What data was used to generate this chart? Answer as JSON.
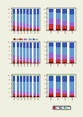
{
  "bg_color": "#f0f0e0",
  "panel_bg": "#f0f0e0",
  "sections": [
    {
      "left": {
        "categories": [
          "가",
          "나",
          "다",
          "라",
          "마",
          "바",
          "사",
          "아"
        ],
        "series": [
          {
            "color": "#800000",
            "values": [
              5,
              4,
              3,
              3,
              2,
              2,
              1,
              1
            ]
          },
          {
            "color": "#CC3333",
            "values": [
              15,
              13,
              12,
              11,
              10,
              9,
              8,
              7
            ]
          },
          {
            "color": "#9966CC",
            "values": [
              20,
              20,
              20,
              18,
              16,
              15,
              14,
              12
            ]
          },
          {
            "color": "#6699CC",
            "values": [
              40,
              42,
              44,
              46,
              48,
              50,
              52,
              54
            ]
          },
          {
            "color": "#3355AA",
            "values": [
              20,
              21,
              21,
              22,
              24,
              24,
              25,
              26
            ]
          }
        ]
      },
      "right": {
        "categories": [
          "가",
          "나",
          "다",
          "라"
        ],
        "series": [
          {
            "color": "#800000",
            "values": [
              8,
              6,
              5,
              4
            ]
          },
          {
            "color": "#CC3333",
            "values": [
              22,
              20,
              16,
              12
            ]
          },
          {
            "color": "#9966CC",
            "values": [
              25,
              26,
              24,
              22
            ]
          },
          {
            "color": "#6699CC",
            "values": [
              30,
              32,
              35,
              38
            ]
          },
          {
            "color": "#3355AA",
            "values": [
              15,
              16,
              20,
              24
            ]
          }
        ]
      }
    },
    {
      "left": {
        "categories": [
          "가",
          "나",
          "다",
          "라",
          "마",
          "바",
          "사",
          "아"
        ],
        "series": [
          {
            "color": "#800000",
            "values": [
              4,
              3,
              3,
              2,
              2,
              1,
              1,
              1
            ]
          },
          {
            "color": "#CC3333",
            "values": [
              12,
              11,
              10,
              9,
              8,
              7,
              6,
              5
            ]
          },
          {
            "color": "#9966CC",
            "values": [
              22,
              20,
              18,
              17,
              16,
              14,
              13,
              12
            ]
          },
          {
            "color": "#6699CC",
            "values": [
              40,
              42,
              44,
              46,
              48,
              50,
              52,
              54
            ]
          },
          {
            "color": "#3355AA",
            "values": [
              22,
              24,
              25,
              26,
              26,
              28,
              28,
              28
            ]
          }
        ]
      },
      "right": {
        "categories": [
          "가",
          "나",
          "다",
          "라"
        ],
        "series": [
          {
            "color": "#800000",
            "values": [
              7,
              5,
              4,
              3
            ]
          },
          {
            "color": "#CC3333",
            "values": [
              18,
              16,
              14,
              11
            ]
          },
          {
            "color": "#9966CC",
            "values": [
              24,
              22,
              20,
              18
            ]
          },
          {
            "color": "#6699CC",
            "values": [
              33,
              34,
              37,
              40
            ]
          },
          {
            "color": "#3355AA",
            "values": [
              18,
              23,
              25,
              28
            ]
          }
        ]
      }
    },
    {
      "left": {
        "categories": [
          "가",
          "나",
          "다",
          "라",
          "마",
          "바",
          "사",
          "아"
        ],
        "series": [
          {
            "color": "#800000",
            "values": [
              3,
              3,
              2,
              2,
              2,
              1,
              1,
              1
            ]
          },
          {
            "color": "#CC3333",
            "values": [
              10,
              9,
              8,
              7,
              6,
              5,
              4,
              4
            ]
          },
          {
            "color": "#9966CC",
            "values": [
              18,
              16,
              15,
              14,
              13,
              12,
              11,
              10
            ]
          },
          {
            "color": "#6699CC",
            "values": [
              42,
              44,
              46,
              48,
              50,
              52,
              54,
              56
            ]
          },
          {
            "color": "#3355AA",
            "values": [
              24,
              25,
              26,
              27,
              27,
              28,
              28,
              27
            ]
          },
          {
            "color": "#66CC66",
            "values": [
              3,
              3,
              3,
              2,
              2,
              2,
              2,
              2
            ]
          }
        ]
      },
      "right": {
        "categories": [
          "가",
          "나",
          "다",
          "라"
        ],
        "series": [
          {
            "color": "#800000",
            "values": [
              5,
              4,
              3,
              2
            ]
          },
          {
            "color": "#CC3333",
            "values": [
              14,
              12,
              10,
              8
            ]
          },
          {
            "color": "#9966CC",
            "values": [
              22,
              20,
              18,
              16
            ]
          },
          {
            "color": "#6699CC",
            "values": [
              34,
              36,
              39,
              43
            ]
          },
          {
            "color": "#3355AA",
            "values": [
              22,
              25,
              27,
              29
            ]
          },
          {
            "color": "#66CC66",
            "values": [
              3,
              3,
              3,
              2
            ]
          }
        ]
      }
    }
  ],
  "legend_section0": [
    {
      "color": "#800000",
      "label": "매우 그렇다"
    },
    {
      "color": "#CC3333",
      "label": "그렇다"
    },
    {
      "color": "#9966CC",
      "label": "보통이다"
    },
    {
      "color": "#6699CC",
      "label": "아니다"
    },
    {
      "color": "#3355AA",
      "label": "전혀 아니다"
    }
  ],
  "legend_section2": [
    {
      "color": "#800000",
      "label": "매우 그렇다"
    },
    {
      "color": "#CC3333",
      "label": "그렇다"
    },
    {
      "color": "#9966CC",
      "label": "보통이다"
    },
    {
      "color": "#6699CC",
      "label": "아니다"
    },
    {
      "color": "#3355AA",
      "label": "전혀 아니다"
    },
    {
      "color": "#66CC66",
      "label": "기타"
    }
  ]
}
